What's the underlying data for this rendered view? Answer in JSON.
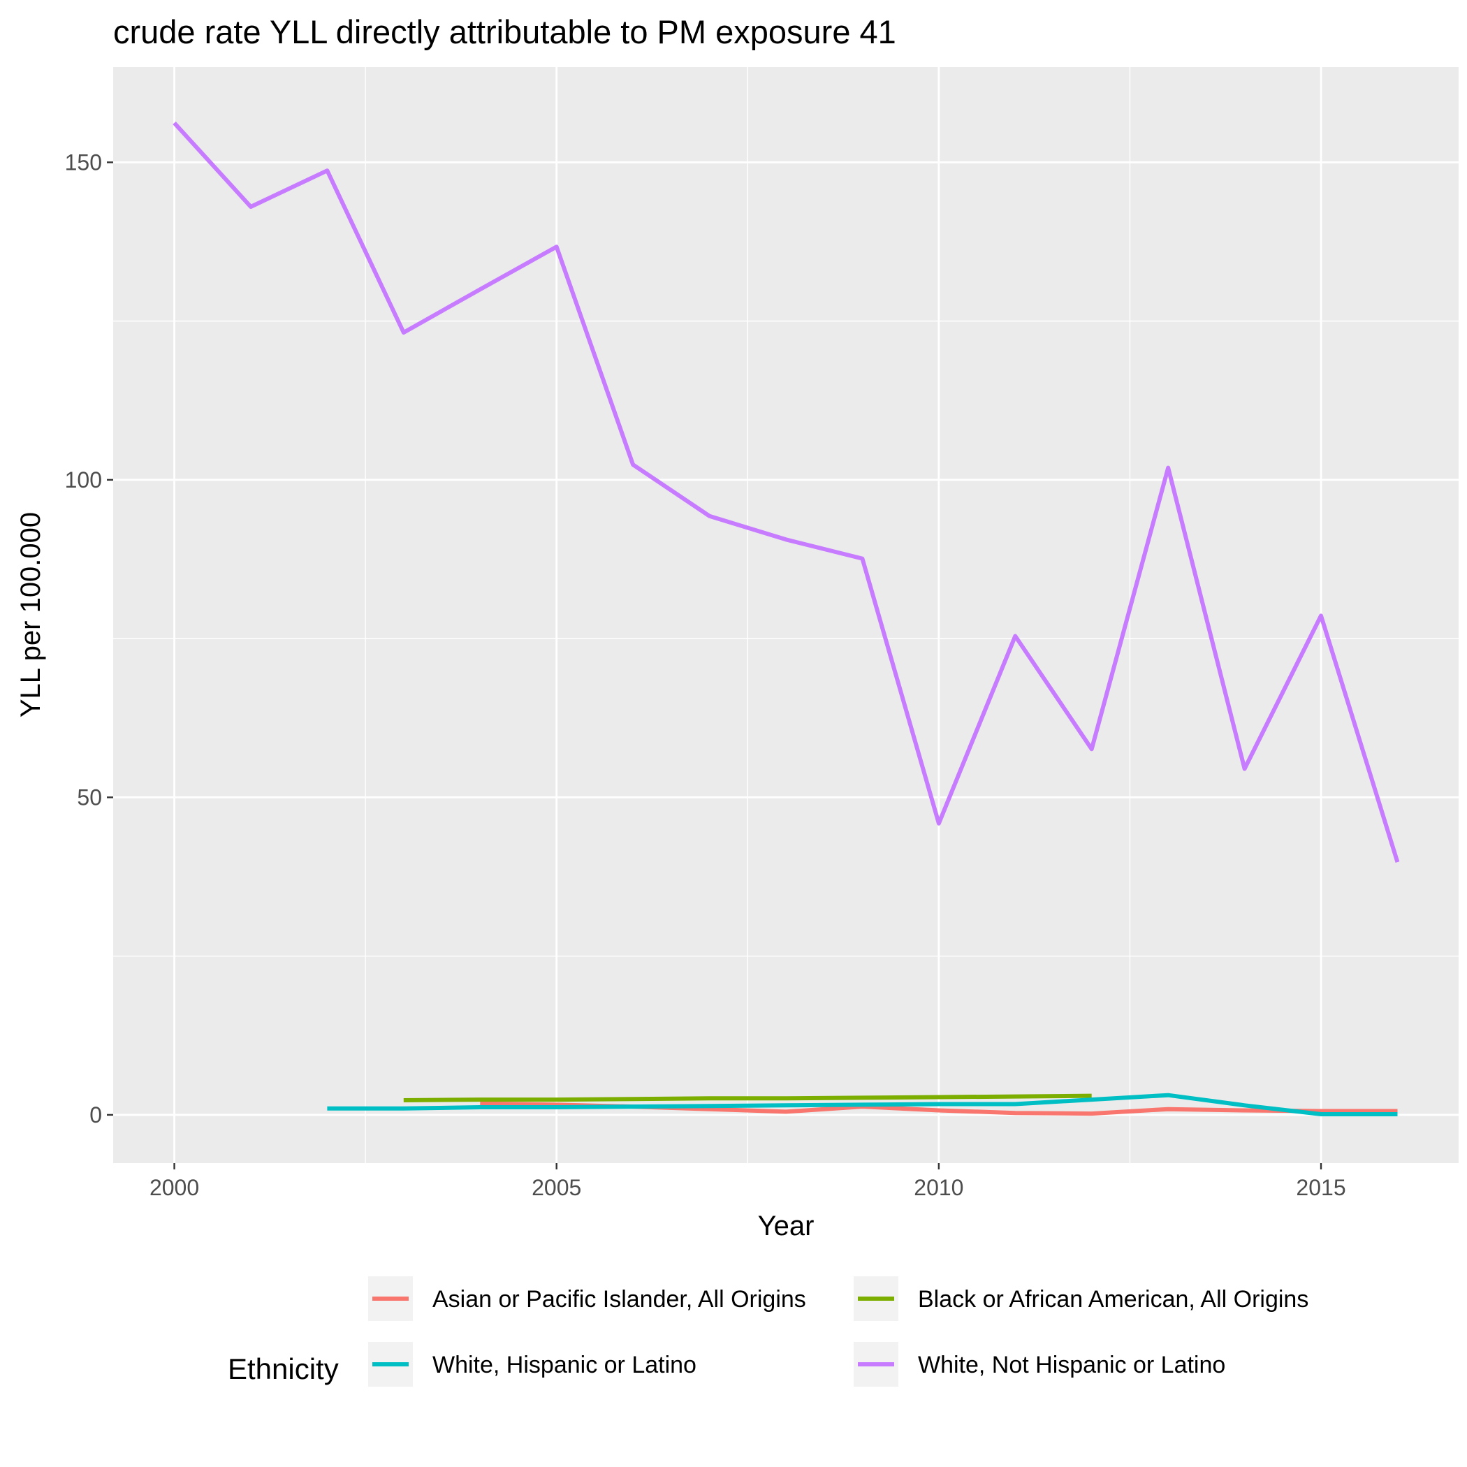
{
  "chart_data": {
    "type": "line",
    "title": "crude rate YLL directly attributable to PM exposure 41",
    "xlabel": "Year",
    "ylabel": "YLL per 100.000",
    "xlim": [
      1999.2,
      2016.8
    ],
    "ylim": [
      -7.6,
      165
    ],
    "x_ticks": [
      2000,
      2005,
      2010,
      2015
    ],
    "y_ticks": [
      0,
      50,
      100,
      150
    ],
    "grid": true,
    "legend": {
      "title": "Ethnicity",
      "position": "bottom"
    },
    "series": [
      {
        "name": "Asian or Pacific Islander, All Origins",
        "color": "#F8766D",
        "x": [
          2004,
          2005,
          2006,
          2007,
          2008,
          2009,
          2010,
          2011,
          2012,
          2013,
          2014,
          2015,
          2016
        ],
        "y": [
          1.8,
          1.6,
          1.3,
          0.9,
          0.5,
          1.3,
          0.7,
          0.3,
          0.2,
          0.9,
          0.7,
          0.6,
          0.6
        ]
      },
      {
        "name": "Black or African American, All Origins",
        "color": "#7CAE00",
        "x": [
          2003,
          2004,
          2005,
          2006,
          2007,
          2008,
          2009,
          2010,
          2011,
          2012
        ],
        "y": [
          2.3,
          2.4,
          2.4,
          2.5,
          2.6,
          2.6,
          2.7,
          2.8,
          2.9,
          3.0
        ]
      },
      {
        "name": "White, Hispanic or Latino",
        "color": "#00BFC4",
        "x": [
          2002,
          2003,
          2004,
          2005,
          2006,
          2007,
          2008,
          2009,
          2010,
          2011,
          2012,
          2013,
          2014,
          2015,
          2016
        ],
        "y": [
          1.0,
          1.0,
          1.2,
          1.2,
          1.3,
          1.4,
          1.5,
          1.6,
          1.7,
          1.7,
          2.4,
          3.1,
          1.5,
          0.1,
          0.1
        ]
      },
      {
        "name": "White, Not Hispanic or Latino",
        "color": "#C77CFF",
        "x": [
          2000,
          2001,
          2002,
          2003,
          2004,
          2005,
          2006,
          2007,
          2008,
          2009,
          2010,
          2011,
          2012,
          2013,
          2014,
          2015,
          2016
        ],
        "y": [
          156.2,
          143.0,
          148.7,
          123.2,
          130.0,
          136.7,
          102.4,
          94.3,
          90.6,
          87.6,
          45.9,
          75.4,
          57.6,
          101.9,
          54.5,
          78.6,
          39.8
        ]
      }
    ]
  }
}
